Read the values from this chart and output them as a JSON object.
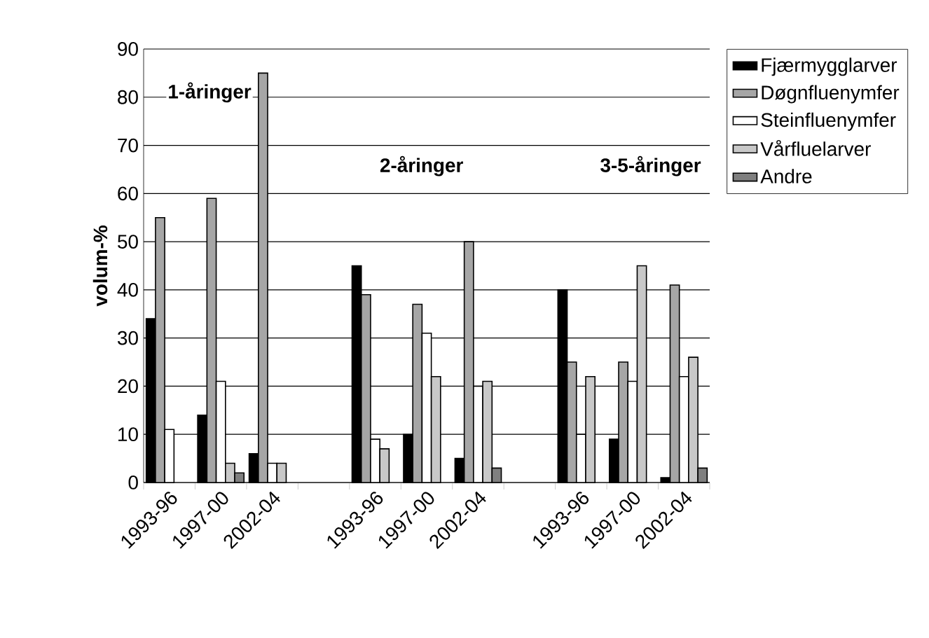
{
  "chart_data": {
    "type": "bar",
    "ylabel": "volum-%",
    "categories": [
      "1993-96",
      "1997-00",
      "2002-04",
      null,
      "1993-96",
      "1997-00",
      "2002-04",
      null,
      "1993-96",
      "1997-00",
      "2002-04"
    ],
    "series": [
      {
        "name": "Fjærmygglarver",
        "color": "#000000",
        "values": [
          34,
          14,
          6,
          null,
          45,
          10,
          5,
          null,
          40,
          9,
          1
        ]
      },
      {
        "name": "Døgnfluenymfer",
        "color": "#a6a6a6",
        "values": [
          55,
          59,
          85,
          null,
          39,
          37,
          50,
          null,
          25,
          25,
          41
        ]
      },
      {
        "name": "Steinfluenymfer",
        "color": "#ffffff",
        "values": [
          11,
          21,
          4,
          null,
          9,
          31,
          20,
          null,
          10,
          21,
          22
        ]
      },
      {
        "name": "Vårfluelarver",
        "color": "#c8c8c8",
        "values": [
          null,
          4,
          4,
          null,
          7,
          22,
          21,
          null,
          22,
          45,
          26
        ]
      },
      {
        "name": "Andre",
        "color": "#7f7f7f",
        "values": [
          null,
          2,
          null,
          null,
          null,
          null,
          3,
          null,
          null,
          null,
          3
        ]
      }
    ],
    "ylim": [
      0,
      90
    ],
    "yticks": [
      0,
      10,
      20,
      30,
      40,
      50,
      60,
      70,
      80,
      90
    ],
    "grid": "y",
    "legend": "right",
    "annotations": [
      "1-åringer",
      "2-åringer",
      "3-5-åringer"
    ]
  }
}
